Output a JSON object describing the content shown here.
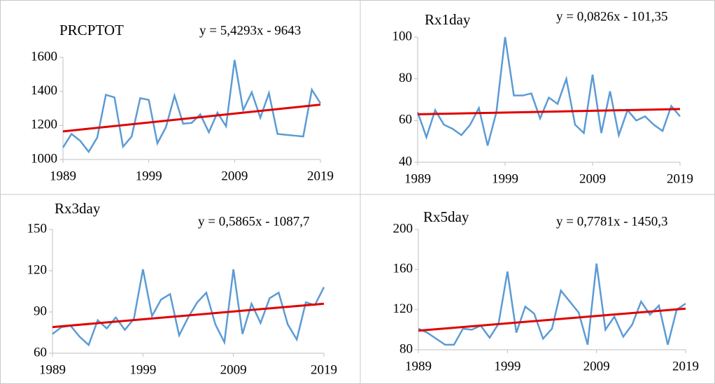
{
  "chart_data": [
    {
      "type": "line",
      "title": "PRCPTOT",
      "annotation": "y = 5,4293x - 9643",
      "x": [
        1989,
        1990,
        1991,
        1992,
        1993,
        1994,
        1995,
        1996,
        1997,
        1998,
        1999,
        2000,
        2001,
        2002,
        2003,
        2004,
        2005,
        2006,
        2007,
        2008,
        2009,
        2010,
        2011,
        2012,
        2013,
        2014,
        2015,
        2016,
        2017,
        2018,
        2019
      ],
      "series": [
        {
          "color": "#5b9bd5",
          "values": [
            1070,
            1150,
            1110,
            1045,
            1130,
            1380,
            1365,
            1075,
            1135,
            1360,
            1350,
            1095,
            1190,
            1375,
            1210,
            1215,
            1265,
            1160,
            1275,
            1195,
            1585,
            1290,
            1395,
            1245,
            1390,
            1150,
            1145,
            1140,
            1135,
            1410,
            1330
          ]
        }
      ],
      "trend": {
        "color": "#e00000",
        "x": [
          1989,
          2019
        ],
        "values": [
          1165,
          1322
        ]
      },
      "xlim": [
        1989,
        2019
      ],
      "xticks": [
        1989,
        1999,
        2009,
        2019
      ],
      "ylim": [
        1000,
        1600
      ],
      "yticks": [
        1000,
        1200,
        1400,
        1600
      ]
    },
    {
      "type": "line",
      "title": "Rx1day",
      "annotation": "y = 0,0826x - 101,35",
      "x": [
        1989,
        1990,
        1991,
        1992,
        1993,
        1994,
        1995,
        1996,
        1997,
        1998,
        1999,
        2000,
        2001,
        2002,
        2003,
        2004,
        2005,
        2006,
        2007,
        2008,
        2009,
        2010,
        2011,
        2012,
        2013,
        2014,
        2015,
        2016,
        2017,
        2018,
        2019
      ],
      "series": [
        {
          "color": "#5b9bd5",
          "values": [
            64,
            52,
            65,
            58,
            56,
            53,
            58,
            66,
            48,
            64,
            100,
            72,
            72,
            73,
            61,
            71,
            68,
            80,
            58,
            54,
            82,
            54,
            74,
            53,
            65,
            60,
            62,
            58,
            55,
            67,
            62
          ]
        }
      ],
      "trend": {
        "color": "#e00000",
        "x": [
          1989,
          2019
        ],
        "values": [
          63,
          65.5
        ]
      },
      "xlim": [
        1989,
        2019
      ],
      "xticks": [
        1989,
        1999,
        2009,
        2019
      ],
      "ylim": [
        40,
        100
      ],
      "yticks": [
        40,
        60,
        80,
        100
      ]
    },
    {
      "type": "line",
      "title": "Rx3day",
      "annotation": "y = 0,5865x - 1087,7",
      "x": [
        1989,
        1990,
        1991,
        1992,
        1993,
        1994,
        1995,
        1996,
        1997,
        1998,
        1999,
        2000,
        2001,
        2002,
        2003,
        2004,
        2005,
        2006,
        2007,
        2008,
        2009,
        2010,
        2011,
        2012,
        2013,
        2014,
        2015,
        2016,
        2017,
        2018,
        2019
      ],
      "series": [
        {
          "color": "#5b9bd5",
          "values": [
            74,
            79,
            80,
            72,
            66,
            84,
            78,
            86,
            77,
            85,
            121,
            87,
            99,
            103,
            73,
            86,
            97,
            104,
            81,
            68,
            121,
            74,
            96,
            82,
            100,
            104,
            81,
            70,
            97,
            95,
            108
          ]
        }
      ],
      "trend": {
        "color": "#e00000",
        "x": [
          1989,
          2019
        ],
        "values": [
          79,
          96
        ]
      },
      "xlim": [
        1989,
        2019
      ],
      "xticks": [
        1989,
        1999,
        2009,
        2019
      ],
      "ylim": [
        60,
        150
      ],
      "yticks": [
        60,
        90,
        120,
        150
      ]
    },
    {
      "type": "line",
      "title": "Rx5day",
      "annotation": "y = 0,7781x - 1450,3",
      "x": [
        1989,
        1990,
        1991,
        1992,
        1993,
        1994,
        1995,
        1996,
        1997,
        1998,
        1999,
        2000,
        2001,
        2002,
        2003,
        2004,
        2005,
        2006,
        2007,
        2008,
        2009,
        2010,
        2011,
        2012,
        2013,
        2014,
        2015,
        2016,
        2017,
        2018,
        2019
      ],
      "series": [
        {
          "color": "#5b9bd5",
          "values": [
            101,
            97,
            91,
            85,
            85,
            101,
            100,
            104,
            92,
            106,
            158,
            97,
            123,
            116,
            91,
            101,
            139,
            128,
            117,
            85,
            166,
            100,
            113,
            93,
            105,
            128,
            115,
            124,
            85,
            120,
            126
          ]
        }
      ],
      "trend": {
        "color": "#e00000",
        "x": [
          1989,
          2019
        ],
        "values": [
          99,
          121
        ]
      },
      "xlim": [
        1989,
        2019
      ],
      "xticks": [
        1989,
        1999,
        2009,
        2019
      ],
      "ylim": [
        80,
        200
      ],
      "yticks": [
        80,
        120,
        160,
        200
      ]
    }
  ]
}
